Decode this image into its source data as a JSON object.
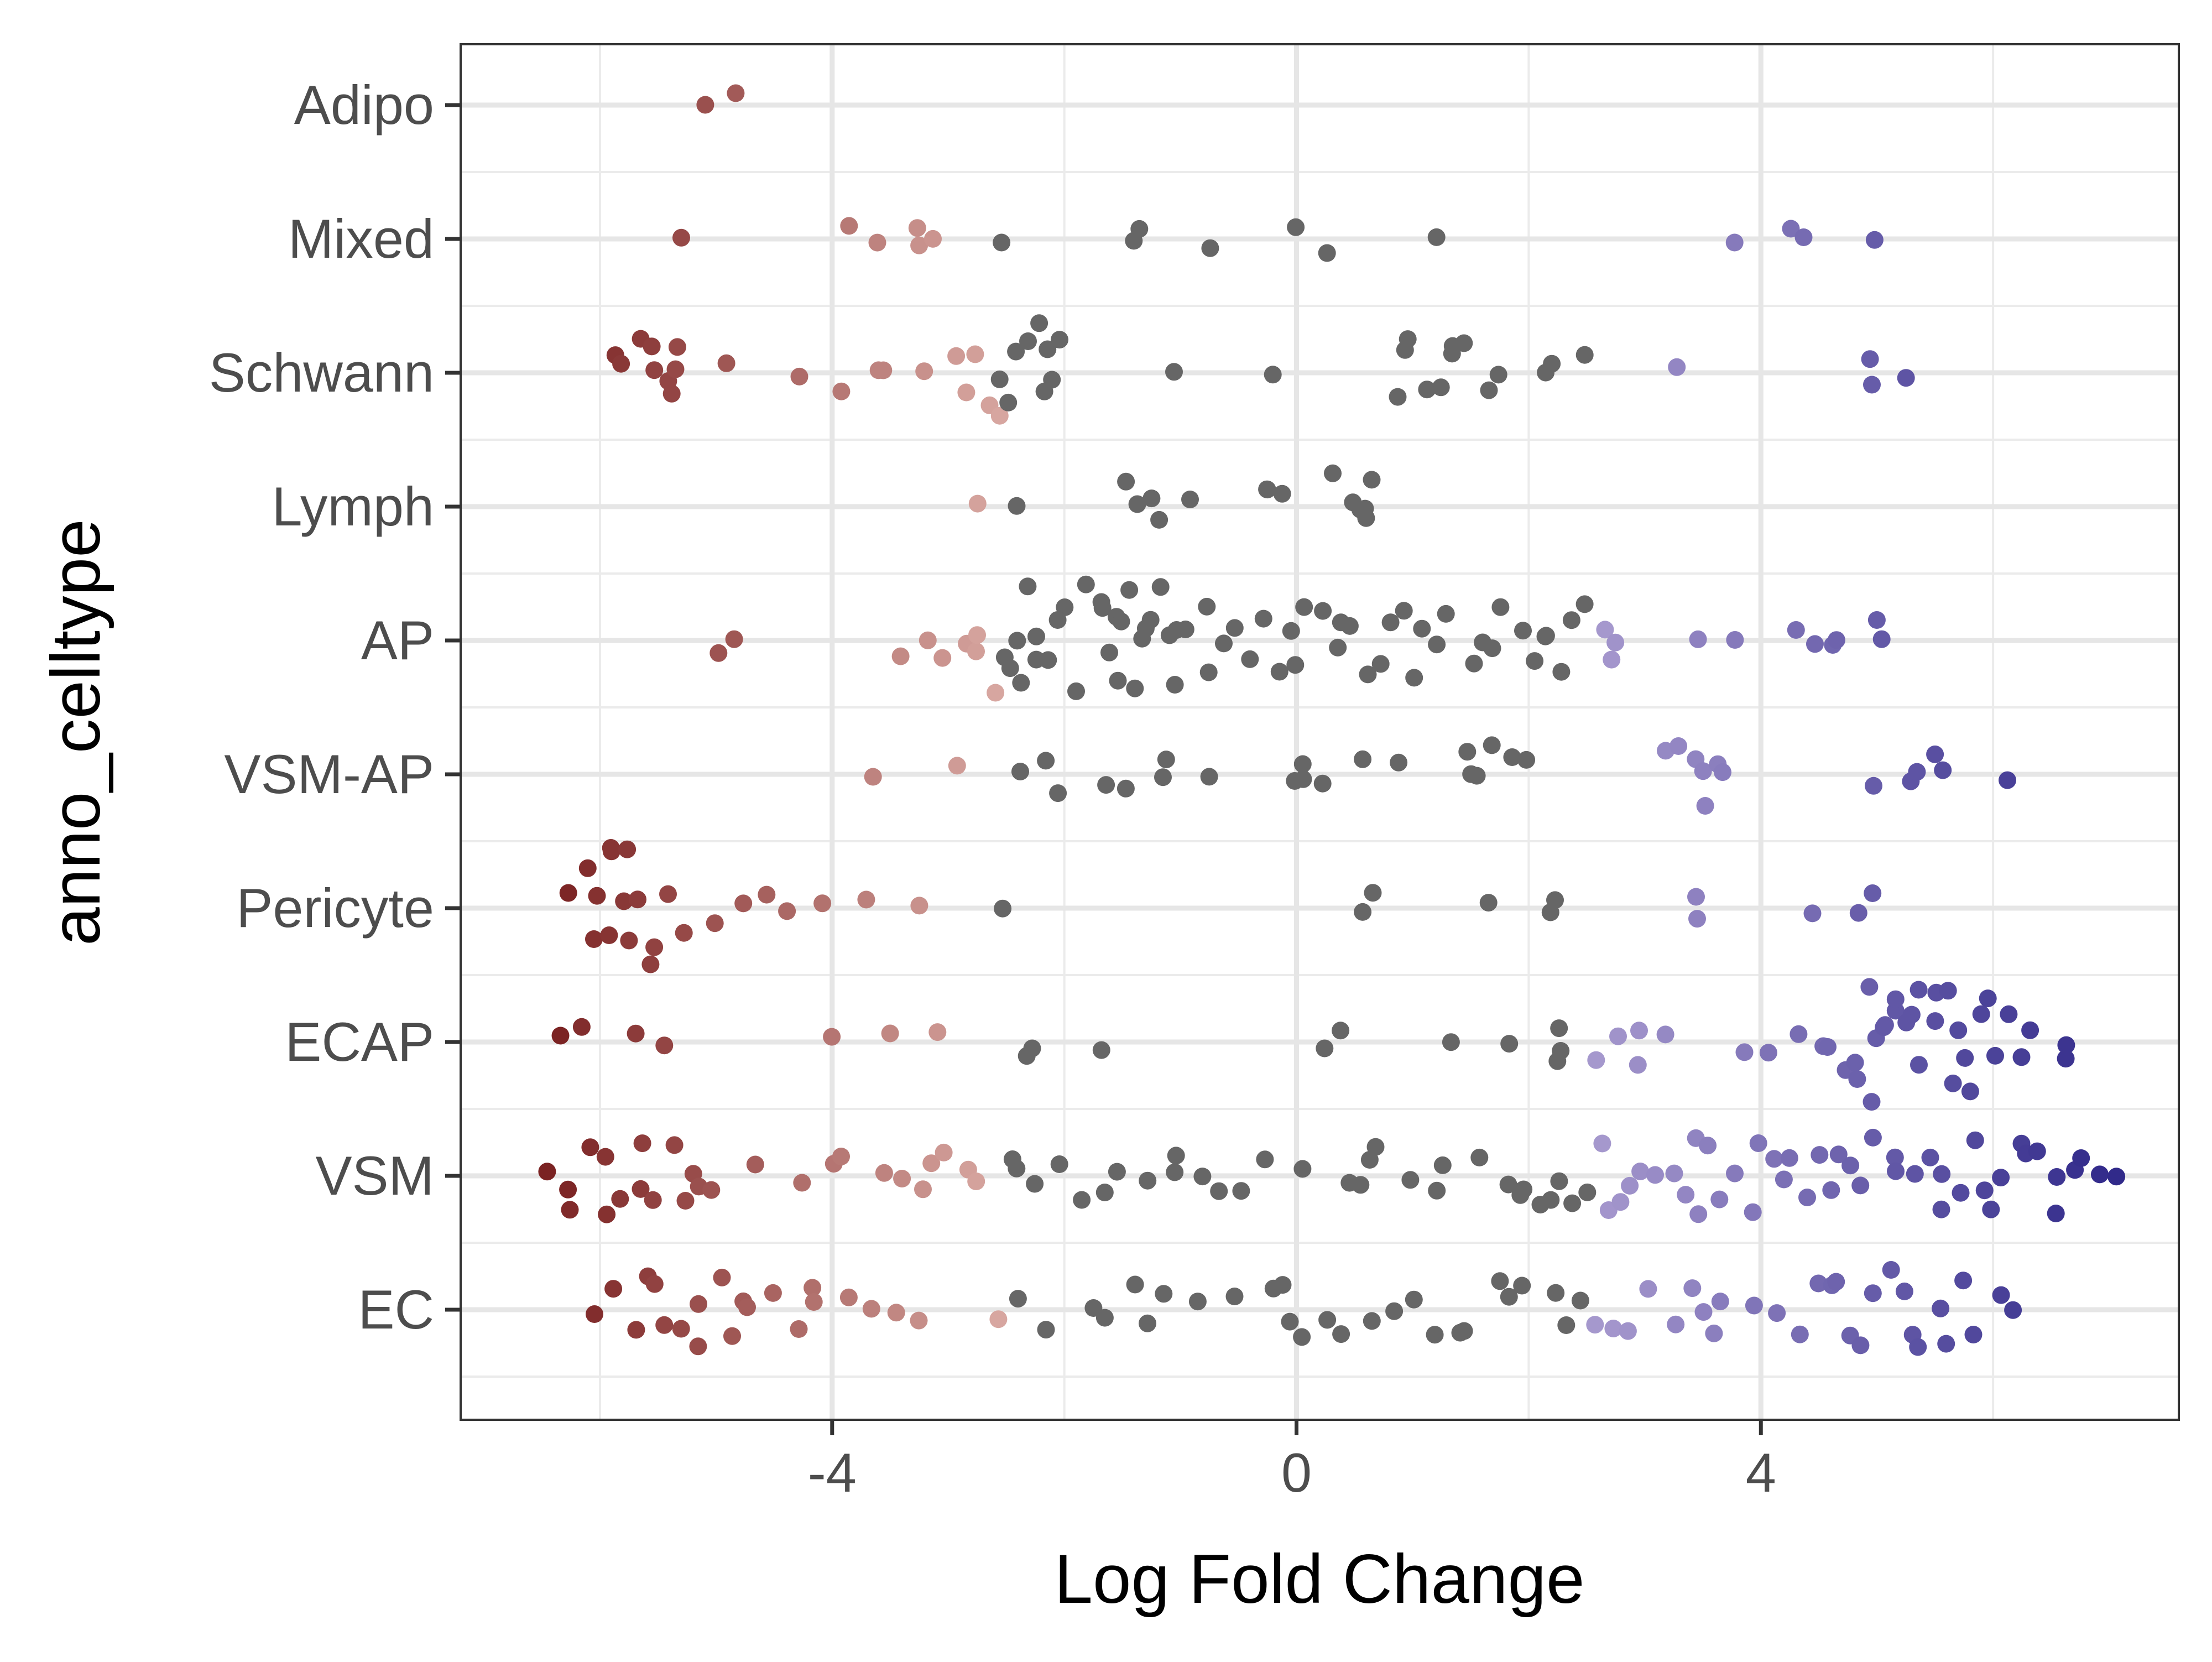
{
  "chart_data": {
    "type": "scatter",
    "subtype": "beeswarm",
    "xlabel": "Log Fold Change",
    "ylabel": "anno_celltype",
    "xlim": [
      -7.2,
      7.6
    ],
    "x_ticks": [
      -4,
      0,
      4
    ],
    "x_tick_labels": [
      "-4",
      "0",
      "4"
    ],
    "categories": [
      "Adipo",
      "Mixed",
      "Schwann",
      "Lymph",
      "AP",
      "VSM-AP",
      "Pericyte",
      "ECAP",
      "VSM",
      "EC"
    ],
    "grid": true,
    "legend": "none",
    "color_scale": {
      "low": "#7b2323",
      "low_mid": "#d9a9a3",
      "mid": "#666666",
      "high_mid": "#a89acf",
      "high": "#312a8a",
      "neutral_range": [
        -2.5,
        2.5
      ]
    },
    "series": [
      {
        "category": "Adipo",
        "x": [
          -5.1,
          -4.8
        ]
      },
      {
        "category": "Mixed",
        "x": [
          -5.3,
          -3.9,
          -3.6,
          -3.3,
          -3.2,
          -3.1,
          -2.5,
          -1.4,
          -1.3,
          -0.8,
          0.0,
          0.3,
          1.2,
          3.8,
          4.2,
          4.4,
          5.0
        ]
      },
      {
        "category": "Schwann",
        "x": [
          -5.9,
          -5.8,
          -5.7,
          -5.6,
          -5.5,
          -5.4,
          -5.4,
          -5.3,
          -5.3,
          -4.9,
          -4.3,
          -3.9,
          -3.6,
          -3.6,
          -3.2,
          -2.9,
          -2.8,
          -2.8,
          -2.7,
          -2.6,
          -2.5,
          -2.5,
          -2.4,
          -2.3,
          -2.2,
          -2.2,
          -2.2,
          -2.1,
          -2.1,
          -1.1,
          -0.2,
          0.9,
          0.9,
          1.0,
          1.1,
          1.2,
          1.3,
          1.4,
          1.5,
          1.7,
          1.7,
          2.2,
          2.2,
          2.5,
          3.3,
          5.0,
          5.0,
          5.3
        ]
      },
      {
        "category": "Lymph",
        "x": [
          -2.7,
          -2.4,
          -1.5,
          -1.4,
          -1.3,
          -1.2,
          -0.9,
          -0.3,
          -0.2,
          -0.1,
          0.3,
          0.5,
          0.5,
          0.6,
          0.6,
          0.6
        ]
      },
      {
        "category": "AP",
        "x": [
          -5.0,
          -4.9,
          -3.4,
          -3.2,
          -3.1,
          -2.9,
          -2.8,
          -2.7,
          -2.6,
          -2.5,
          -2.5,
          -2.4,
          -2.4,
          -2.3,
          -2.3,
          -2.2,
          -2.1,
          -2.0,
          -2.0,
          -1.9,
          -1.8,
          -1.7,
          -1.7,
          -1.6,
          -1.6,
          -1.5,
          -1.5,
          -1.4,
          -1.4,
          -1.3,
          -1.3,
          -1.2,
          -1.2,
          -1.1,
          -1.0,
          -1.0,
          -0.9,
          -0.8,
          -0.7,
          -0.6,
          -0.5,
          -0.4,
          -0.3,
          -0.2,
          -0.1,
          0.0,
          0.1,
          0.2,
          0.3,
          0.4,
          0.5,
          0.6,
          0.7,
          0.8,
          0.9,
          1.0,
          1.1,
          1.2,
          1.3,
          1.5,
          1.6,
          1.7,
          1.8,
          1.9,
          2.0,
          2.1,
          2.2,
          2.3,
          2.4,
          2.5,
          2.6,
          2.7,
          2.8,
          3.5,
          3.8,
          4.3,
          4.5,
          4.6,
          4.7,
          5.0,
          5.1
        ]
      },
      {
        "category": "VSM-AP",
        "x": [
          -3.6,
          -2.9,
          -2.4,
          -2.1,
          -2.1,
          -1.7,
          -1.5,
          -1.2,
          -1.1,
          -0.7,
          0.0,
          0.0,
          0.1,
          0.2,
          0.6,
          0.9,
          1.5,
          1.5,
          1.5,
          1.7,
          1.9,
          2.0,
          3.2,
          3.3,
          3.4,
          3.5,
          3.5,
          3.6,
          3.7,
          5.0,
          5.3,
          5.3,
          5.5,
          5.6,
          6.1
        ]
      },
      {
        "category": "Pericyte",
        "x": [
          -6.3,
          -6.1,
          -6.0,
          -6.0,
          -5.9,
          -5.9,
          -5.9,
          -5.8,
          -5.8,
          -5.7,
          -5.7,
          -5.6,
          -5.5,
          -5.4,
          -5.3,
          -5.0,
          -4.8,
          -4.6,
          -4.4,
          -4.1,
          -3.7,
          -3.2,
          -2.5,
          0.6,
          0.6,
          1.6,
          2.2,
          2.2,
          3.5,
          3.5,
          4.4,
          4.9,
          5.0
        ]
      },
      {
        "category": "ECAP",
        "x": [
          -6.4,
          -6.1,
          -5.7,
          -5.4,
          -4.0,
          -3.5,
          -3.1,
          -2.3,
          -2.3,
          -1.7,
          0.3,
          0.4,
          1.3,
          1.8,
          2.2,
          2.3,
          2.3,
          2.6,
          2.8,
          2.9,
          3.0,
          3.2,
          3.8,
          4.1,
          4.3,
          4.5,
          4.6,
          4.7,
          4.8,
          4.8,
          4.9,
          5.0,
          5.0,
          5.1,
          5.1,
          5.2,
          5.2,
          5.3,
          5.3,
          5.4,
          5.4,
          5.5,
          5.5,
          5.6,
          5.6,
          5.7,
          5.8,
          5.8,
          5.9,
          6.0,
          6.0,
          6.1,
          6.2,
          6.3,
          6.6,
          6.6
        ]
      },
      {
        "category": "VSM",
        "x": [
          -6.5,
          -6.3,
          -6.2,
          -6.1,
          -6.0,
          -5.9,
          -5.8,
          -5.7,
          -5.6,
          -5.5,
          -5.4,
          -5.3,
          -5.2,
          -5.1,
          -5.0,
          -4.7,
          -4.2,
          -4.0,
          -3.9,
          -3.6,
          -3.4,
          -3.2,
          -3.1,
          -3.0,
          -2.8,
          -2.7,
          -2.5,
          -2.4,
          -2.3,
          -2.0,
          -1.8,
          -1.6,
          -1.5,
          -1.3,
          -1.1,
          -1.0,
          -0.8,
          -0.7,
          -0.5,
          -0.3,
          0.0,
          0.4,
          0.5,
          0.6,
          0.7,
          1.0,
          1.2,
          1.3,
          1.6,
          1.8,
          1.9,
          2.0,
          2.1,
          2.2,
          2.3,
          2.4,
          2.5,
          2.6,
          2.7,
          2.8,
          2.9,
          3.0,
          3.1,
          3.2,
          3.3,
          3.4,
          3.5,
          3.6,
          3.7,
          3.8,
          3.9,
          4.0,
          4.1,
          4.2,
          4.3,
          4.4,
          4.5,
          4.6,
          4.7,
          4.8,
          4.9,
          5.0,
          5.1,
          5.2,
          5.3,
          5.4,
          5.5,
          5.6,
          5.7,
          5.8,
          5.9,
          6.0,
          6.1,
          6.2,
          6.3,
          6.4,
          6.5,
          6.6,
          6.7,
          6.8,
          6.9,
          7.1
        ]
      },
      {
        "category": "EC",
        "x": [
          -6.1,
          -5.9,
          -5.7,
          -5.6,
          -5.5,
          -5.4,
          -5.3,
          -5.2,
          -5.1,
          -5.0,
          -4.9,
          -4.8,
          -4.7,
          -4.5,
          -4.3,
          -4.2,
          -4.1,
          -3.9,
          -3.7,
          -3.5,
          -3.3,
          -2.6,
          -2.4,
          -2.1,
          -1.8,
          -1.6,
          -1.4,
          -1.3,
          -1.2,
          -0.9,
          -0.5,
          -0.2,
          -0.1,
          0.0,
          0.1,
          0.3,
          0.4,
          0.6,
          0.8,
          1.0,
          1.2,
          1.4,
          1.5,
          1.7,
          1.8,
          2.0,
          2.2,
          2.3,
          2.4,
          2.6,
          2.7,
          2.8,
          3.0,
          3.3,
          3.4,
          3.5,
          3.6,
          3.7,
          4.0,
          4.1,
          4.3,
          4.5,
          4.6,
          4.7,
          4.8,
          4.9,
          5.0,
          5.1,
          5.2,
          5.3,
          5.4,
          5.5,
          5.6,
          5.7,
          5.8,
          6.1,
          6.2
        ]
      }
    ]
  }
}
